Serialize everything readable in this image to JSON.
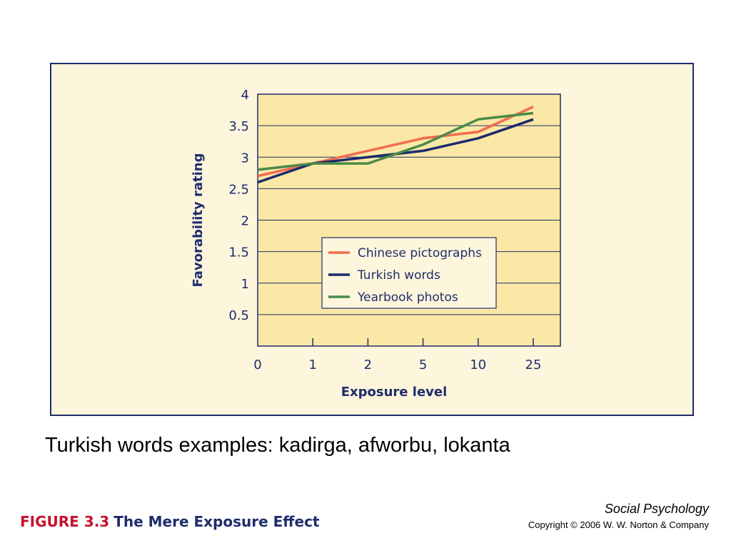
{
  "chart_data": {
    "type": "line",
    "categories": [
      "0",
      "1",
      "2",
      "5",
      "10",
      "25"
    ],
    "xlabel": "Exposure level",
    "ylabel": "Favorability rating",
    "ylim": [
      0,
      4
    ],
    "yticks": [
      "0",
      "0.5",
      "1",
      "1.5",
      "2",
      "2.5",
      "3",
      "3.5",
      "4"
    ],
    "grid": true,
    "legend_position": "center",
    "series": [
      {
        "name": "Chinese pictographs",
        "color": "#f26b4f",
        "values": [
          2.7,
          2.9,
          3.1,
          3.3,
          3.4,
          3.8
        ]
      },
      {
        "name": "Turkish words",
        "color": "#1b2a6b",
        "values": [
          2.6,
          2.9,
          3.0,
          3.1,
          3.3,
          3.6
        ]
      },
      {
        "name": "Yearbook photos",
        "color": "#4a8a4a",
        "values": [
          2.8,
          2.9,
          2.9,
          3.2,
          3.6,
          3.7
        ]
      }
    ]
  },
  "caption": "Turkish words examples: kadirga, afworbu, lokanta",
  "figure": {
    "number": "FIGURE 3.3",
    "title": "The Mere Exposure Effect"
  },
  "footer": {
    "book": "Social Psychology",
    "copyright": "Copyright © 2006 W. W. Norton & Company"
  },
  "colors": {
    "frame_border": "#1f2d6b",
    "frame_bg": "#fdf5dc",
    "plot_bg": "#fbe8a6",
    "figure_num": "#c8102e"
  }
}
